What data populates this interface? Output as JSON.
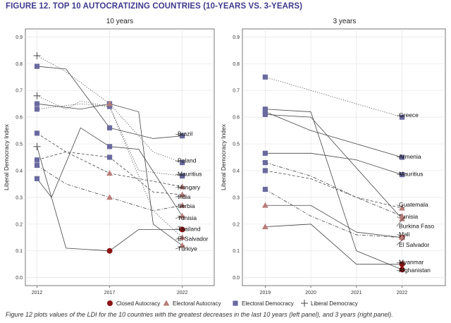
{
  "figure_title": "FIGURE 12. TOP 10 AUTOCRATIZING COUNTRIES (10-YEARS VS. 3-YEARS)",
  "caption": "Figure 12 plots values of the LDI for the 10 countries with the greatest decreases in the last 10 years (left panel), and 3 years (right panel).",
  "colors": {
    "title": "#3d3a8c",
    "closed_autocracy": "#8b1414",
    "electoral_autocracy": "#b87c78",
    "electoral_democracy": "#6a6aa0",
    "liberal_democracy": "#555555",
    "line": "#444444"
  },
  "legend": [
    {
      "key": "closed_autocracy",
      "label": "Closed Autocracy",
      "marker": "circle"
    },
    {
      "key": "electoral_autocracy",
      "label": "Electoral Autocracy",
      "marker": "triangle"
    },
    {
      "key": "electoral_democracy",
      "label": "Electoral Democracy",
      "marker": "square"
    },
    {
      "key": "liberal_democracy",
      "label": "Liberal Democracy",
      "marker": "plus"
    }
  ],
  "chart_data": [
    {
      "type": "line",
      "title": "10 years",
      "ylabel": "Liberal Democracy Index",
      "x_ticks": [
        2012,
        2017,
        2022
      ],
      "xlim": [
        2011.2,
        2024.2
      ],
      "ylim": [
        -0.03,
        0.93
      ],
      "y_ticks": [
        0.0,
        0.1,
        0.2,
        0.3,
        0.4,
        0.5,
        0.6,
        0.7,
        0.8,
        0.9
      ],
      "grid": true,
      "series": [
        {
          "name": "Brazil",
          "style": "solid",
          "points": [
            [
              2012,
              0.79
            ],
            [
              2014,
              0.78
            ],
            [
              2017,
              0.56
            ],
            [
              2020,
              0.52
            ],
            [
              2022,
              0.53
            ]
          ],
          "regime": {
            "2012": "electoral_democracy",
            "2017": "electoral_democracy",
            "2022": "electoral_democracy"
          }
        },
        {
          "name": "Poland",
          "style": "dotted",
          "points": [
            [
              2012,
              0.83
            ],
            [
              2014,
              0.77
            ],
            [
              2017,
              0.65
            ],
            [
              2020,
              0.47
            ],
            [
              2022,
              0.43
            ]
          ],
          "regime": {
            "2012": "liberal_democracy",
            "2017": "electoral_democracy",
            "2022": "electoral_democracy"
          }
        },
        {
          "name": "Mauritius",
          "style": "dotted",
          "points": [
            [
              2012,
              0.68
            ],
            [
              2014,
              0.63
            ],
            [
              2015,
              0.66
            ],
            [
              2017,
              0.64
            ],
            [
              2019,
              0.4
            ],
            [
              2022,
              0.38
            ]
          ],
          "regime": {
            "2012": "liberal_democracy",
            "2017": "electoral_democracy",
            "2022": "electoral_democracy"
          }
        },
        {
          "name": "Hungary",
          "style": "dashed",
          "points": [
            [
              2012,
              0.54
            ],
            [
              2014,
              0.47
            ],
            [
              2017,
              0.39
            ],
            [
              2020,
              0.36
            ],
            [
              2022,
              0.34
            ]
          ],
          "regime": {
            "2012": "electoral_democracy",
            "2017": "electoral_autocracy",
            "2022": "electoral_autocracy"
          }
        },
        {
          "name": "India",
          "style": "dashed",
          "points": [
            [
              2012,
              0.44
            ],
            [
              2014,
              0.47
            ],
            [
              2017,
              0.45
            ],
            [
              2020,
              0.32
            ],
            [
              2022,
              0.31
            ]
          ],
          "regime": {
            "2012": "electoral_democracy",
            "2017": "electoral_democracy",
            "2022": "electoral_autocracy"
          }
        },
        {
          "name": "Serbia",
          "style": "dashdot",
          "points": [
            [
              2012,
              0.42
            ],
            [
              2014,
              0.35
            ],
            [
              2017,
              0.3
            ],
            [
              2020,
              0.25
            ],
            [
              2022,
              0.27
            ]
          ],
          "regime": {
            "2012": "electoral_democracy",
            "2017": "electoral_autocracy",
            "2022": "electoral_autocracy"
          }
        },
        {
          "name": "Tunisia",
          "style": "solid",
          "points": [
            [
              2012,
              0.37
            ],
            [
              2013,
              0.3
            ],
            [
              2015,
              0.56
            ],
            [
              2017,
              0.49
            ],
            [
              2019,
              0.48
            ],
            [
              2022,
              0.23
            ]
          ],
          "regime": {
            "2012": "electoral_democracy",
            "2017": "electoral_democracy",
            "2022": "electoral_autocracy"
          }
        },
        {
          "name": "Thailand",
          "style": "solid",
          "points": [
            [
              2012,
              0.49
            ],
            [
              2014,
              0.11
            ],
            [
              2017,
              0.1
            ],
            [
              2019,
              0.18
            ],
            [
              2022,
              0.18
            ]
          ],
          "regime": {
            "2012": "liberal_democracy",
            "2017": "closed_autocracy",
            "2022": "closed_autocracy"
          }
        },
        {
          "name": "El Salvador",
          "style": "dotted",
          "points": [
            [
              2012,
              0.63
            ],
            [
              2015,
              0.65
            ],
            [
              2017,
              0.64
            ],
            [
              2020,
              0.25
            ],
            [
              2022,
              0.15
            ]
          ],
          "regime": {
            "2012": "electoral_democracy",
            "2017": "electoral_democracy",
            "2022": "electoral_autocracy"
          }
        },
        {
          "name": "Türkiye",
          "style": "solid",
          "points": [
            [
              2012,
              0.65
            ],
            [
              2015,
              0.63
            ],
            [
              2017,
              0.65
            ],
            [
              2019,
              0.62
            ],
            [
              2020,
              0.2
            ],
            [
              2022,
              0.12
            ]
          ],
          "regime": {
            "2012": "electoral_democracy",
            "2017": "electoral_autocracy",
            "2022": "electoral_autocracy"
          }
        }
      ]
    },
    {
      "type": "line",
      "title": "3 years",
      "ylabel": "Liberal Democracy Index",
      "x_ticks": [
        2019,
        2020,
        2021,
        2022
      ],
      "xlim": [
        2018.5,
        2022.95
      ],
      "ylim": [
        -0.03,
        0.93
      ],
      "y_ticks": [
        0.0,
        0.1,
        0.2,
        0.3,
        0.4,
        0.5,
        0.6,
        0.7,
        0.8,
        0.9
      ],
      "grid": true,
      "series": [
        {
          "name": "Greece",
          "style": "dotted",
          "points": [
            [
              2019,
              0.75
            ],
            [
              2020,
              0.7
            ],
            [
              2021,
              0.65
            ],
            [
              2022,
              0.6
            ]
          ],
          "regime": {
            "2019": "electoral_democracy",
            "2022": "electoral_democracy"
          }
        },
        {
          "name": "Armenia",
          "style": "solid",
          "points": [
            [
              2019,
              0.62
            ],
            [
              2020,
              0.55
            ],
            [
              2021,
              0.5
            ],
            [
              2022,
              0.45
            ]
          ],
          "regime": {
            "2019": "electoral_democracy",
            "2022": "electoral_democracy"
          }
        },
        {
          "name": "Mauritius",
          "style": "solid",
          "points": [
            [
              2019,
              0.465
            ],
            [
              2020,
              0.465
            ],
            [
              2021,
              0.44
            ],
            [
              2022,
              0.385
            ]
          ],
          "regime": {
            "2019": "electoral_democracy",
            "2022": "electoral_democracy"
          }
        },
        {
          "name": "Guatemala",
          "style": "dashed",
          "points": [
            [
              2019,
              0.4
            ],
            [
              2020,
              0.37
            ],
            [
              2021,
              0.3
            ],
            [
              2022,
              0.26
            ]
          ],
          "regime": {
            "2019": "electoral_democracy",
            "2022": "electoral_autocracy"
          }
        },
        {
          "name": "Tunisia",
          "style": "solid",
          "points": [
            [
              2019,
              0.61
            ],
            [
              2020,
              0.6
            ],
            [
              2021,
              0.41
            ],
            [
              2022,
              0.22
            ]
          ],
          "regime": {
            "2019": "electoral_democracy",
            "2022": "electoral_autocracy"
          }
        },
        {
          "name": "Burkina Faso",
          "style": "dashdot",
          "points": [
            [
              2019,
              0.43
            ],
            [
              2020,
              0.38
            ],
            [
              2021,
              0.3
            ],
            [
              2022,
              0.23
            ]
          ],
          "regime": {
            "2019": "electoral_democracy",
            "2022": "electoral_autocracy"
          }
        },
        {
          "name": "Mali",
          "style": "solid",
          "points": [
            [
              2019,
              0.27
            ],
            [
              2020,
              0.27
            ],
            [
              2021,
              0.17
            ],
            [
              2022,
              0.15
            ]
          ],
          "regime": {
            "2019": "electoral_autocracy",
            "2022": "closed_autocracy"
          }
        },
        {
          "name": "El Salvador",
          "style": "dashdot",
          "points": [
            [
              2019,
              0.33
            ],
            [
              2020,
              0.23
            ],
            [
              2021,
              0.16
            ],
            [
              2022,
              0.15
            ]
          ],
          "regime": {
            "2019": "electoral_democracy",
            "2022": "electoral_autocracy"
          }
        },
        {
          "name": "Myanmar",
          "style": "solid",
          "points": [
            [
              2019,
              0.19
            ],
            [
              2020,
              0.2
            ],
            [
              2021,
              0.05
            ],
            [
              2022,
              0.05
            ]
          ],
          "regime": {
            "2019": "electoral_autocracy",
            "2022": "closed_autocracy"
          }
        },
        {
          "name": "Afghanistan",
          "style": "solid",
          "points": [
            [
              2019,
              0.63
            ],
            [
              2020,
              0.62
            ],
            [
              2021,
              0.1
            ],
            [
              2022,
              0.03
            ]
          ],
          "regime": {
            "2019": "electoral_democracy",
            "2022": "closed_autocracy"
          }
        }
      ]
    }
  ]
}
